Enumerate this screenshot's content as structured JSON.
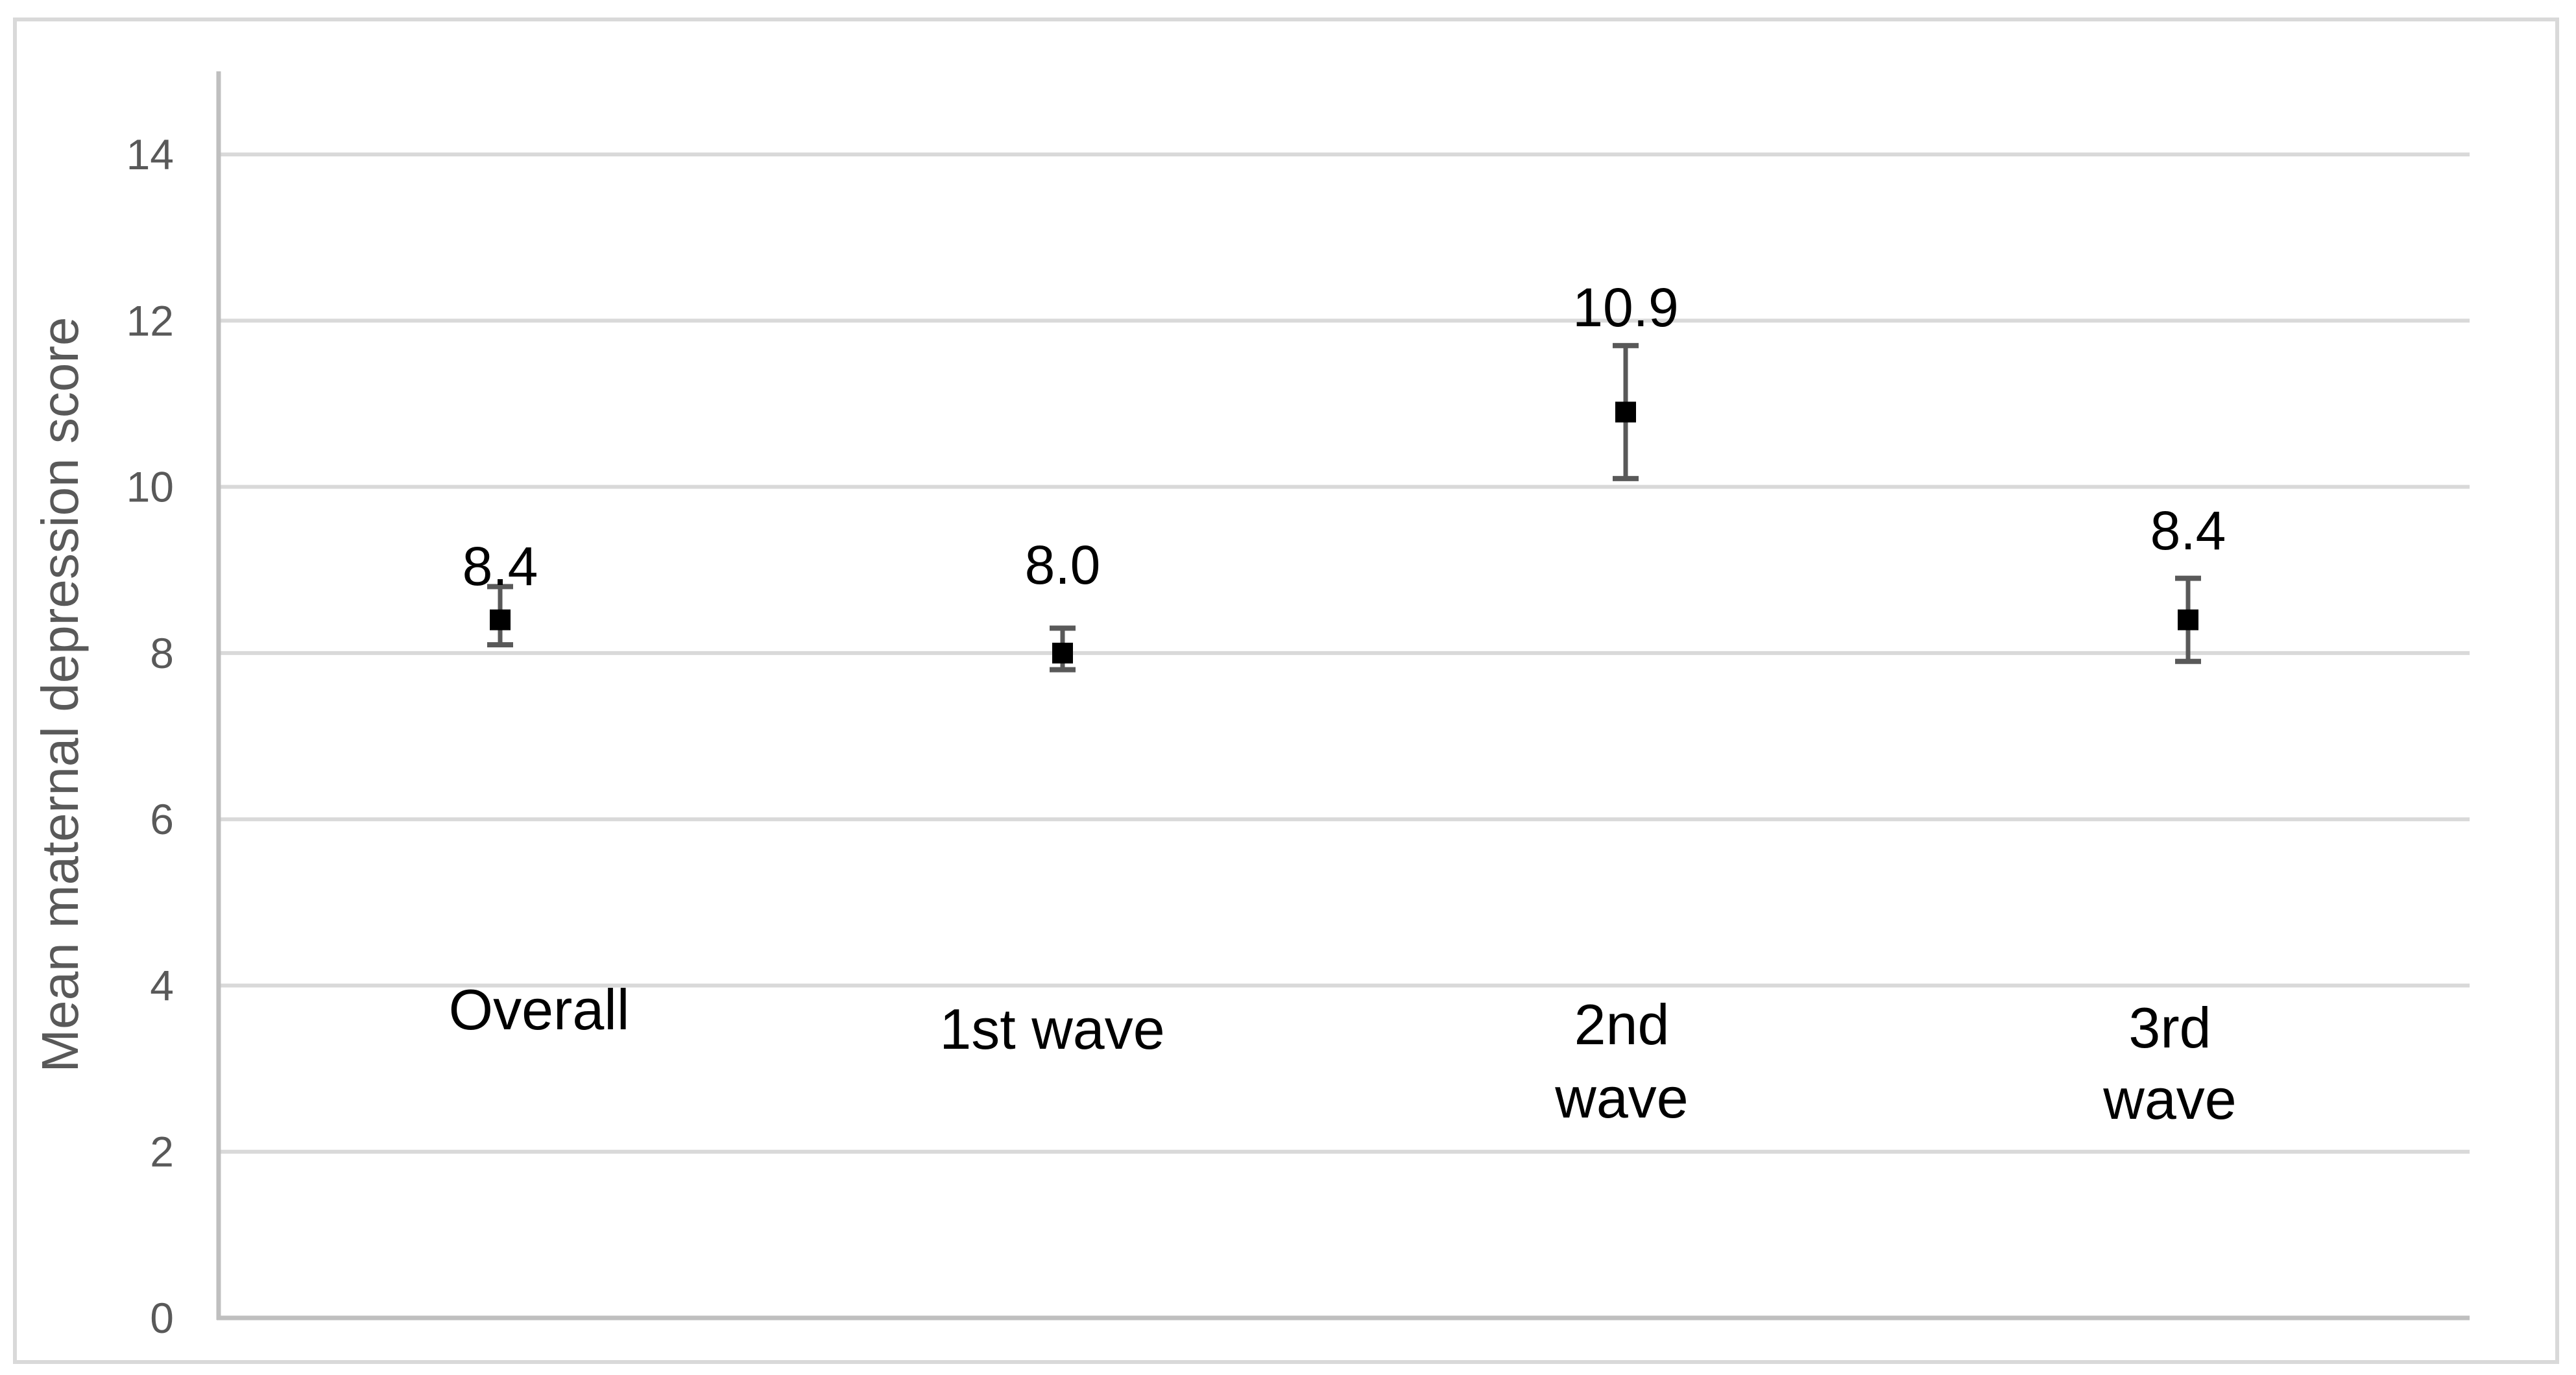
{
  "figure": {
    "background": "#ffffff",
    "border_color": "#d9d9d9"
  },
  "chart_data": {
    "type": "scatter",
    "title": "",
    "ylabel": "Mean maternal depression score",
    "xlabel": "",
    "categories": [
      "Overall",
      "1st wave",
      "2nd wave",
      "3rd wave"
    ],
    "category_label_lines": [
      [
        "Overall"
      ],
      [
        "1st wave"
      ],
      [
        "2nd",
        "wave"
      ],
      [
        "3rd",
        "wave"
      ]
    ],
    "series": [
      {
        "name": "Mean maternal depression score",
        "values": [
          8.4,
          8.0,
          10.9,
          8.4
        ],
        "data_labels": [
          "8.4",
          "8.0",
          "10.9",
          "8.4"
        ],
        "error_low": [
          8.1,
          7.8,
          10.1,
          7.9
        ],
        "error_high": [
          8.8,
          8.3,
          11.7,
          8.9
        ]
      }
    ],
    "ylim": [
      0,
      15
    ],
    "yticks": [
      0,
      2,
      4,
      6,
      8,
      10,
      12,
      14
    ],
    "ytick_labels": [
      "0",
      "2",
      "4",
      "6",
      "8",
      "10",
      "12",
      "14"
    ],
    "grid": true,
    "legend": false,
    "marker": "square",
    "colors": {
      "marker": "#000000",
      "error_bar": "#595959",
      "gridline": "#d9d9d9",
      "axis_line": "#bfbfbf",
      "tick_label": "#595959",
      "axis_title": "#595959",
      "data_label": "#000000",
      "category_label": "#000000"
    }
  }
}
